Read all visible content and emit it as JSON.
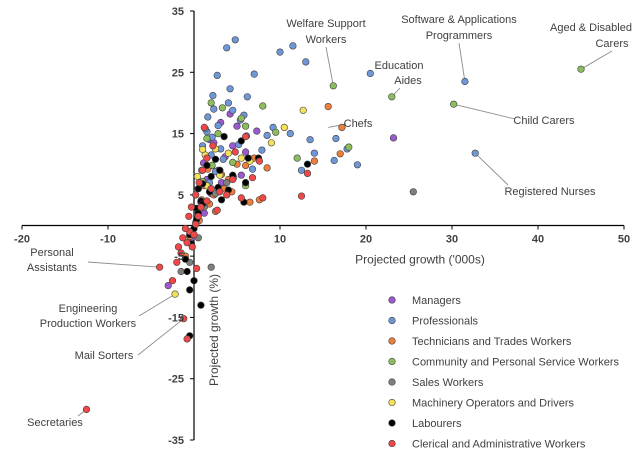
{
  "chart_data": {
    "type": "scatter",
    "title": "",
    "xlabel": "Projected growth ('000s)",
    "ylabel": "Projected growth (%)",
    "xlim": [
      -20,
      50
    ],
    "ylim": [
      -35,
      35
    ],
    "x_ticks": [
      -20,
      -10,
      0,
      10,
      20,
      30,
      40,
      50
    ],
    "y_ticks": [
      -35,
      -25,
      -15,
      -5,
      5,
      15,
      25,
      35
    ],
    "legend_position": "bottom-right",
    "grid": false,
    "series": [
      {
        "name": "Managers",
        "color": "#9b59d0",
        "points": [
          [
            1.8,
            14.0
          ],
          [
            2.3,
            13.5
          ],
          [
            3.1,
            16.8
          ],
          [
            4.2,
            18.2
          ],
          [
            5.0,
            16.2
          ],
          [
            6.0,
            12.0
          ],
          [
            6.6,
            10.8
          ],
          [
            3.6,
            11.2
          ],
          [
            7.3,
            15.4
          ],
          [
            2.0,
            5.2
          ],
          [
            1.5,
            7.5
          ],
          [
            0.8,
            3.8
          ],
          [
            1.1,
            10.2
          ],
          [
            2.8,
            9.0
          ],
          [
            4.5,
            13.0
          ],
          [
            23.2,
            14.3
          ],
          [
            -3.0,
            -9.8
          ],
          [
            0.4,
            1.0
          ],
          [
            5.5,
            8.2
          ],
          [
            3.2,
            7.0
          ],
          [
            1.2,
            2.0
          ],
          [
            -0.3,
            -2.0
          ]
        ]
      },
      {
        "name": "Professionals",
        "color": "#6f97d8",
        "points": [
          [
            4.8,
            30.3
          ],
          [
            3.8,
            29.0
          ],
          [
            10.0,
            28.3
          ],
          [
            11.5,
            29.3
          ],
          [
            13.0,
            26.7
          ],
          [
            2.7,
            24.5
          ],
          [
            7.0,
            24.7
          ],
          [
            6.2,
            21.0
          ],
          [
            4.2,
            22.3
          ],
          [
            4.0,
            20.0
          ],
          [
            2.3,
            19.0
          ],
          [
            4.5,
            18.8
          ],
          [
            5.8,
            18.0
          ],
          [
            1.6,
            17.7
          ],
          [
            2.8,
            16.3
          ],
          [
            1.5,
            15.3
          ],
          [
            2.1,
            14.4
          ],
          [
            6.1,
            14.6
          ],
          [
            8.5,
            14.7
          ],
          [
            11.2,
            15.0
          ],
          [
            13.5,
            14.0
          ],
          [
            16.5,
            14.2
          ],
          [
            14.0,
            11.8
          ],
          [
            17.8,
            12.5
          ],
          [
            19.0,
            9.9
          ],
          [
            16.3,
            10.6
          ],
          [
            20.5,
            24.8
          ],
          [
            31.5,
            23.5
          ],
          [
            32.7,
            11.8
          ],
          [
            1.0,
            13.0
          ],
          [
            2.0,
            11.5
          ],
          [
            3.4,
            10.8
          ],
          [
            0.9,
            9.0
          ],
          [
            2.5,
            8.8
          ],
          [
            4.6,
            7.8
          ],
          [
            1.8,
            7.0
          ],
          [
            3.1,
            12.5
          ],
          [
            5.2,
            13.2
          ],
          [
            6.8,
            9.2
          ],
          [
            1.3,
            15.8
          ],
          [
            12.5,
            9.0
          ],
          [
            9.2,
            16.0
          ],
          [
            7.9,
            12.3
          ],
          [
            2.2,
            21.2
          ],
          [
            5.4,
            17.2
          ]
        ]
      },
      {
        "name": "Technicians and Trades Workers",
        "color": "#ef7e3a",
        "points": [
          [
            15.6,
            19.4
          ],
          [
            17.2,
            16.0
          ],
          [
            3.5,
            6.0
          ],
          [
            2.3,
            5.0
          ],
          [
            4.0,
            7.5
          ],
          [
            6.5,
            3.8
          ],
          [
            7.6,
            4.2
          ],
          [
            0.6,
            0.8
          ],
          [
            -0.3,
            -3.0
          ],
          [
            -1.0,
            -5.0
          ],
          [
            8.5,
            9.4
          ],
          [
            1.8,
            3.5
          ],
          [
            2.5,
            2.3
          ],
          [
            5.0,
            10.0
          ],
          [
            3.2,
            8.3
          ],
          [
            1.2,
            6.5
          ],
          [
            17.0,
            11.7
          ],
          [
            14.0,
            10.5
          ],
          [
            6.0,
            9.8
          ],
          [
            1.6,
            9.2
          ],
          [
            -0.5,
            -1.8
          ],
          [
            0.9,
            4.2
          ],
          [
            4.4,
            5.5
          ],
          [
            7.0,
            11.0
          ]
        ]
      },
      {
        "name": "Community and Personal Service Workers",
        "color": "#8cbd5c",
        "points": [
          [
            45.0,
            25.5
          ],
          [
            30.2,
            19.8
          ],
          [
            23.0,
            21.0
          ],
          [
            16.2,
            22.8
          ],
          [
            2.0,
            20.0
          ],
          [
            3.3,
            19.2
          ],
          [
            8.0,
            19.5
          ],
          [
            5.5,
            17.5
          ],
          [
            6.0,
            16.2
          ],
          [
            9.5,
            15.2
          ],
          [
            12.0,
            11.0
          ],
          [
            18.0,
            12.8
          ],
          [
            2.8,
            15.0
          ],
          [
            1.5,
            14.2
          ],
          [
            4.5,
            10.3
          ],
          [
            3.0,
            9.0
          ],
          [
            6.0,
            6.5
          ],
          [
            1.0,
            7.2
          ],
          [
            0.5,
            6.0
          ],
          [
            2.1,
            9.8
          ]
        ]
      },
      {
        "name": "Sales Workers",
        "color": "#7f7f7f",
        "points": [
          [
            25.5,
            5.5
          ],
          [
            2.0,
            -6.8
          ],
          [
            -0.5,
            -6.0
          ],
          [
            0.5,
            -2.0
          ],
          [
            1.2,
            3.0
          ],
          [
            2.5,
            5.2
          ],
          [
            3.8,
            7.0
          ],
          [
            0.2,
            0.5
          ],
          [
            -1.5,
            -7.5
          ]
        ]
      },
      {
        "name": "Machinery Operators and Drivers",
        "color": "#f5e05a",
        "points": [
          [
            10.5,
            16.0
          ],
          [
            12.7,
            18.8
          ],
          [
            9.0,
            13.5
          ],
          [
            2.5,
            12.5
          ],
          [
            1.3,
            11.5
          ],
          [
            5.5,
            11.0
          ],
          [
            0.4,
            8.0
          ],
          [
            1.5,
            6.5
          ],
          [
            3.0,
            8.2
          ],
          [
            6.5,
            10.5
          ],
          [
            -2.2,
            -11.2
          ],
          [
            4.0,
            11.8
          ],
          [
            1.0,
            12.4
          ]
        ]
      },
      {
        "name": "Labourers",
        "color": "#000000",
        "points": [
          [
            3.5,
            14.5
          ],
          [
            5.5,
            13.8
          ],
          [
            6.3,
            11.0
          ],
          [
            2.5,
            10.8
          ],
          [
            1.5,
            9.8
          ],
          [
            3.0,
            9.0
          ],
          [
            4.5,
            8.2
          ],
          [
            2.0,
            8.0
          ],
          [
            6.0,
            7.0
          ],
          [
            1.0,
            6.8
          ],
          [
            0.5,
            6.0
          ],
          [
            1.8,
            5.5
          ],
          [
            3.2,
            4.2
          ],
          [
            0.8,
            4.0
          ],
          [
            5.8,
            3.8
          ],
          [
            0.3,
            2.8
          ],
          [
            1.0,
            3.5
          ],
          [
            0.5,
            2.0
          ],
          [
            0.3,
            1.0
          ],
          [
            0.0,
            -0.5
          ],
          [
            -0.5,
            -1.5
          ],
          [
            -0.3,
            -3.0
          ],
          [
            -1.0,
            -5.5
          ],
          [
            -0.8,
            -7.5
          ],
          [
            0.0,
            -9.0
          ],
          [
            -0.5,
            -10.5
          ],
          [
            0.8,
            -13.0
          ],
          [
            -0.5,
            -18.0
          ],
          [
            13.2,
            10.0
          ],
          [
            7.5,
            11.0
          ],
          [
            2.8,
            6.2
          ],
          [
            4.0,
            5.8
          ]
        ]
      },
      {
        "name": "Clerical and Administrative Workers",
        "color": "#f04848",
        "points": [
          [
            -12.5,
            -30.0
          ],
          [
            -4.0,
            -6.8
          ],
          [
            -1.2,
            -15.2
          ],
          [
            -0.8,
            -18.5
          ],
          [
            -2.5,
            -9.0
          ],
          [
            -1.5,
            -4.5
          ],
          [
            -0.8,
            -2.8
          ],
          [
            -0.5,
            -1.0
          ],
          [
            0.2,
            0.2
          ],
          [
            0.5,
            1.5
          ],
          [
            0.8,
            3.0
          ],
          [
            1.5,
            4.0
          ],
          [
            2.0,
            6.0
          ],
          [
            3.0,
            5.5
          ],
          [
            4.5,
            7.5
          ],
          [
            5.5,
            4.5
          ],
          [
            8.0,
            4.5
          ],
          [
            12.5,
            4.8
          ],
          [
            13.2,
            8.5
          ],
          [
            7.6,
            10.5
          ],
          [
            4.8,
            12.0
          ],
          [
            6.0,
            14.5
          ],
          [
            2.2,
            13.0
          ],
          [
            1.5,
            11.0
          ],
          [
            1.0,
            9.0
          ],
          [
            0.6,
            7.0
          ],
          [
            0.2,
            5.0
          ],
          [
            -0.3,
            3.0
          ],
          [
            -0.6,
            1.5
          ],
          [
            -1.0,
            -0.5
          ],
          [
            -1.3,
            -2.0
          ],
          [
            -1.8,
            -3.5
          ],
          [
            -2.0,
            -6.0
          ],
          [
            -0.2,
            -3.5
          ],
          [
            0.0,
            -1.5
          ],
          [
            1.2,
            16.0
          ],
          [
            3.8,
            5.0
          ],
          [
            2.7,
            2.5
          ],
          [
            6.8,
            7.8
          ],
          [
            0.3,
            -7.0
          ]
        ]
      }
    ],
    "annotations": [
      {
        "text": "Welfare Support",
        "x": 16.2,
        "y": 22.8
      },
      {
        "text": "Workers",
        "x": 16.2,
        "y": 22.8
      },
      {
        "text": "Software & Applications",
        "x": 31.5,
        "y": 23.5
      },
      {
        "text": "Programmers",
        "x": 31.5,
        "y": 23.5
      },
      {
        "text": "Aged & Disabled",
        "x": 45.0,
        "y": 25.5
      },
      {
        "text": "Carers",
        "x": 45.0,
        "y": 25.5
      },
      {
        "text": "Education",
        "x": 23.0,
        "y": 21.0
      },
      {
        "text": "Aides",
        "x": 23.0,
        "y": 21.0
      },
      {
        "text": "Chefs",
        "x": 15.6,
        "y": 16.0
      },
      {
        "text": "Child Carers",
        "x": 30.2,
        "y": 19.8
      },
      {
        "text": "Registered Nurses",
        "x": 32.7,
        "y": 11.8
      },
      {
        "text": "Personal",
        "x": -4.0,
        "y": -6.8
      },
      {
        "text": "Assistants",
        "x": -4.0,
        "y": -6.8
      },
      {
        "text": "Engineering",
        "x": -2.2,
        "y": -11.2
      },
      {
        "text": "Production Workers",
        "x": -2.2,
        "y": -11.2
      },
      {
        "text": "Mail Sorters",
        "x": -1.2,
        "y": -15.2
      },
      {
        "text": "Secretaries",
        "x": -12.5,
        "y": -30.0
      }
    ]
  }
}
